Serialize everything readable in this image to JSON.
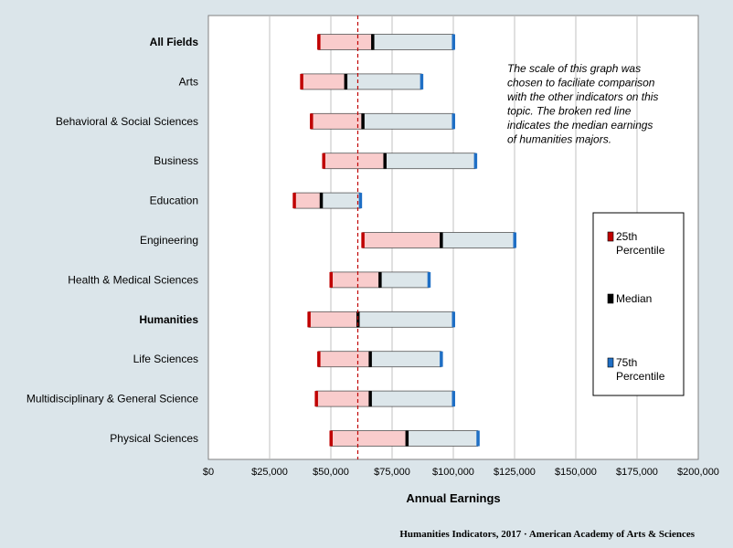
{
  "chart_data": {
    "type": "bar",
    "subtype": "floating-range-bar",
    "orientation": "horizontal",
    "categories": [
      "All Fields",
      "Arts",
      "Behavioral & Social Sciences",
      "Business",
      "Education",
      "Engineering",
      "Health & Medical Sciences",
      "Humanities",
      "Life Sciences",
      "Multidisciplinary & General Science",
      "Physical Sciences"
    ],
    "bold_categories": [
      "All Fields",
      "Humanities"
    ],
    "highlight_category": "Humanities",
    "series": [
      {
        "name": "25th Percentile",
        "values": [
          45000,
          38000,
          42000,
          47000,
          35000,
          63000,
          50000,
          41000,
          45000,
          44000,
          50000
        ]
      },
      {
        "name": "Median",
        "values": [
          67000,
          56000,
          63000,
          72000,
          46000,
          95000,
          70000,
          61000,
          66000,
          66000,
          81000
        ]
      },
      {
        "name": "75th Percentile",
        "values": [
          100000,
          87000,
          100000,
          109000,
          62000,
          125000,
          90000,
          100000,
          95000,
          100000,
          110000
        ]
      }
    ],
    "reference_line": {
      "value": 61000,
      "style": "dashed",
      "color": "#c00000"
    },
    "xlabel": "Annual Earnings",
    "xlim": [
      0,
      200000
    ],
    "x_ticks": [
      "$0",
      "$25,000",
      "$50,000",
      "$75,000",
      "$100,000",
      "$125,000",
      "$150,000",
      "$175,000",
      "$200,000"
    ],
    "x_tick_values": [
      0,
      25000,
      50000,
      75000,
      100000,
      125000,
      150000,
      175000,
      200000
    ],
    "grid": "vertical",
    "legend": {
      "placement": "right",
      "entries": [
        {
          "lines": [
            "25th",
            "Percentile"
          ],
          "color": "#c00000"
        },
        {
          "lines": [
            "Median"
          ],
          "color": "#000000"
        },
        {
          "lines": [
            "75th",
            "Percentile"
          ],
          "color": "#1f6fc5"
        }
      ]
    },
    "annotation": [
      "The scale of this graph was",
      "chosen to faciliate comparison",
      "with the other indicators on this",
      "topic. The broken red line",
      "indicates the median earnings",
      "of humanities majors."
    ]
  },
  "colors": {
    "background": "#dbe5ea",
    "plot_background": "#ffffff",
    "low_segment_fill": "#f9cccc",
    "high_segment_fill": "#dce6ea",
    "percentile25_marker": "#c00000",
    "median_marker": "#000000",
    "percentile75_marker": "#1f6fc5",
    "highlight_label": "#cc0000",
    "gridline": "#c0c0c0"
  },
  "footer": {
    "credit": "Humanities Indicators, 2017 · American Academy of Arts & Sciences"
  }
}
